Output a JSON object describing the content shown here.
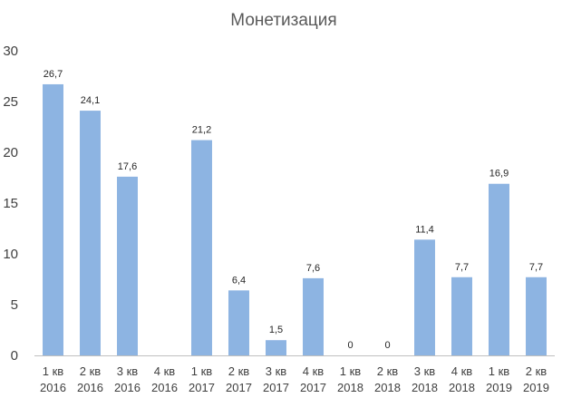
{
  "chart_data": {
    "type": "bar",
    "title": "Монетизация",
    "xlabel": "",
    "ylabel": "",
    "ylim": [
      0,
      30
    ],
    "yticks": [
      "0",
      "5",
      "10",
      "15",
      "20",
      "25",
      "30"
    ],
    "categories": [
      [
        "1 кв",
        "2016"
      ],
      [
        "2 кв",
        "2016"
      ],
      [
        "3 кв",
        "2016"
      ],
      [
        "4 кв",
        "2016"
      ],
      [
        "1 кв",
        "2017"
      ],
      [
        "2 кв",
        "2017"
      ],
      [
        "3 кв",
        "2017"
      ],
      [
        "4 кв",
        "2017"
      ],
      [
        "1 кв",
        "2018"
      ],
      [
        "2 кв",
        "2018"
      ],
      [
        "3 кв",
        "2018"
      ],
      [
        "4 кв",
        "2018"
      ],
      [
        "1 кв",
        "2019"
      ],
      [
        "2 кв",
        "2019"
      ]
    ],
    "values": [
      26.7,
      24.1,
      17.6,
      null,
      21.2,
      6.4,
      1.5,
      7.6,
      0,
      0,
      11.4,
      7.7,
      16.9,
      7.7
    ],
    "data_labels": [
      "26,7",
      "24,1",
      "17,6",
      "",
      "21,2",
      "6,4",
      "1,5",
      "7,6",
      "0",
      "0",
      "11,4",
      "7,7",
      "16,9",
      "7,7"
    ],
    "grid": false,
    "legend": "none",
    "bar_color": "#8DB4E2",
    "axis_color": "#BFBFBF"
  }
}
